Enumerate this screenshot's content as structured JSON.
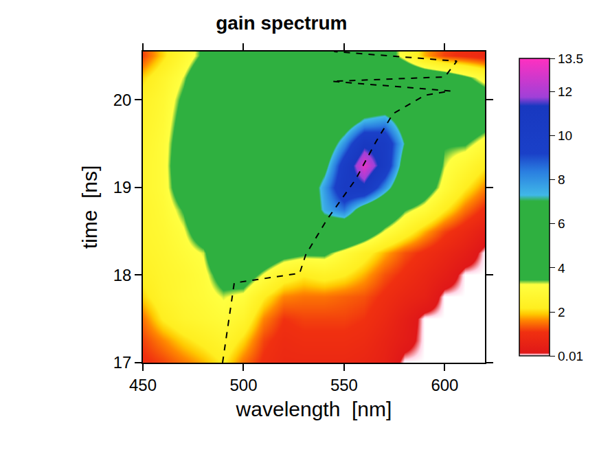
{
  "chart_data": {
    "type": "heatmap",
    "title": "gain spectrum",
    "x_label": "wavelength  [nm]",
    "y_label": "time  [ns]",
    "x": [
      450,
      460,
      470,
      480,
      490,
      500,
      510,
      520,
      530,
      540,
      550,
      560,
      570,
      580,
      590,
      600,
      610,
      620
    ],
    "y": [
      17.0,
      17.25,
      17.5,
      17.75,
      18.0,
      18.25,
      18.5,
      18.75,
      19.0,
      19.25,
      19.5,
      19.75,
      20.0,
      20.25,
      20.5
    ],
    "z": [
      [
        1.0,
        1.2,
        1.5,
        1.8,
        2.2,
        1.5,
        1.0,
        0.8,
        0.8,
        0.8,
        0.8,
        0.7,
        0.5,
        0.01,
        0.01,
        0.01,
        0.01,
        0.01
      ],
      [
        1.2,
        1.6,
        2.0,
        2.3,
        2.6,
        2.0,
        1.2,
        0.9,
        1.0,
        1.0,
        1.0,
        0.9,
        0.6,
        0.3,
        0.01,
        0.01,
        0.01,
        0.01
      ],
      [
        1.5,
        2.2,
        2.6,
        2.8,
        3.0,
        2.6,
        1.6,
        1.1,
        1.2,
        1.2,
        1.2,
        1.1,
        0.8,
        0.4,
        0.01,
        0.01,
        0.01,
        0.01
      ],
      [
        2.0,
        2.5,
        2.8,
        3.0,
        3.3,
        3.1,
        2.2,
        1.6,
        1.5,
        1.5,
        1.4,
        1.3,
        1.0,
        0.7,
        0.5,
        0.01,
        0.01,
        0.01
      ],
      [
        2.3,
        2.6,
        2.8,
        3.1,
        3.8,
        4.0,
        3.2,
        2.5,
        2.2,
        2.4,
        2.2,
        1.8,
        1.3,
        1.0,
        0.7,
        0.4,
        0.01,
        0.01
      ],
      [
        2.5,
        2.7,
        3.0,
        3.3,
        4.5,
        4.6,
        4.3,
        3.8,
        3.6,
        3.6,
        3.0,
        2.4,
        1.8,
        1.3,
        1.0,
        0.7,
        0.4,
        0.01
      ],
      [
        2.6,
        2.8,
        3.2,
        4.0,
        4.8,
        5.0,
        5.0,
        4.9,
        4.9,
        5.5,
        5.0,
        4.2,
        3.2,
        2.5,
        1.8,
        1.2,
        0.8,
        0.4
      ],
      [
        2.6,
        2.9,
        3.5,
        4.6,
        5.0,
        5.0,
        5.0,
        5.0,
        5.0,
        7.5,
        8.5,
        6.0,
        4.5,
        3.5,
        3.0,
        2.2,
        1.5,
        1.0
      ],
      [
        2.7,
        3.0,
        4.0,
        5.0,
        5.0,
        5.0,
        5.0,
        5.0,
        5.2,
        7.8,
        10.5,
        11.0,
        8.0,
        5.0,
        4.0,
        3.0,
        2.2,
        1.6
      ],
      [
        2.7,
        3.0,
        4.2,
        5.0,
        5.0,
        5.0,
        5.0,
        5.0,
        5.0,
        6.5,
        10.0,
        13.0,
        10.5,
        6.0,
        4.5,
        3.3,
        2.8,
        2.2
      ],
      [
        2.6,
        3.0,
        4.0,
        5.0,
        5.0,
        5.0,
        5.0,
        5.0,
        5.0,
        5.5,
        8.0,
        11.0,
        10.5,
        7.0,
        4.8,
        3.5,
        3.5,
        3.0
      ],
      [
        2.5,
        2.9,
        3.8,
        4.8,
        5.0,
        5.0,
        5.0,
        5.0,
        5.0,
        5.0,
        5.8,
        7.5,
        8.0,
        6.0,
        5.0,
        4.2,
        4.2,
        3.8
      ],
      [
        2.4,
        2.8,
        3.6,
        4.6,
        5.0,
        5.0,
        5.0,
        5.0,
        5.0,
        5.0,
        5.0,
        5.0,
        5.2,
        5.0,
        4.8,
        4.6,
        4.4,
        4.0
      ],
      [
        2.0,
        2.6,
        3.3,
        4.3,
        4.8,
        5.0,
        5.0,
        5.0,
        5.0,
        5.0,
        5.0,
        5.0,
        5.0,
        4.8,
        4.5,
        4.2,
        3.6,
        3.0
      ],
      [
        1.2,
        2.0,
        2.8,
        3.6,
        4.2,
        4.6,
        4.8,
        5.0,
        5.0,
        5.0,
        4.8,
        4.6,
        4.0,
        3.0,
        1.8,
        1.2,
        1.0,
        0.8
      ]
    ],
    "xlim": [
      450,
      620
    ],
    "ylim": [
      17,
      20.55
    ],
    "xticks": [
      450,
      500,
      550,
      600
    ],
    "yticks": [
      17,
      18,
      19,
      20
    ],
    "colorbar": {
      "range": [
        0.01,
        13.5
      ],
      "ticks": [
        0.01,
        2,
        4,
        6,
        8,
        10,
        12,
        13.5
      ]
    },
    "series": [
      {
        "type": "line",
        "line_style": "dashed",
        "color": "#000000",
        "x": [
          489.6,
          495.4,
          527.9,
          530.9,
          541.4,
          555.7,
          565.8,
          574.3,
          590,
          603,
          544,
          600,
          606,
          545
        ],
        "y": [
          17.0,
          17.91,
          18.02,
          18.23,
          18.63,
          19.09,
          19.52,
          19.84,
          20.05,
          20.1,
          20.21,
          20.26,
          20.44,
          20.55
        ]
      }
    ]
  }
}
